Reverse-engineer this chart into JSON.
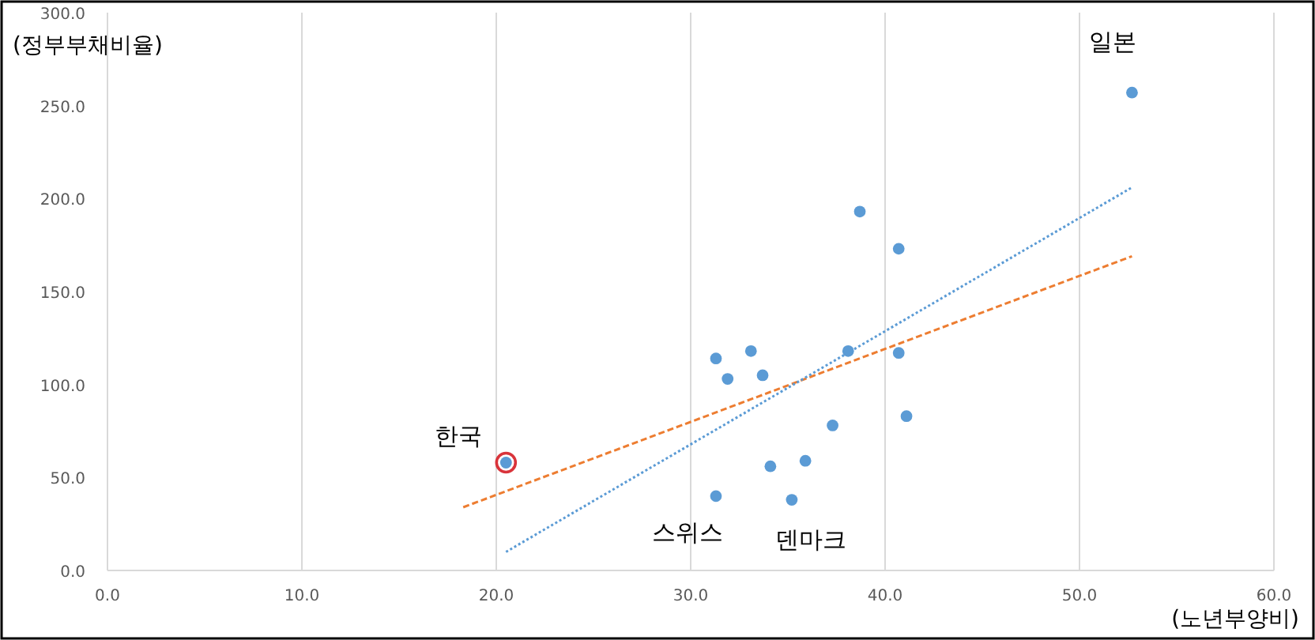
{
  "chart_data": {
    "type": "scatter",
    "xlabel": "(노년부양비)",
    "ylabel": "(정부부채비율)",
    "xlim": [
      0,
      60
    ],
    "ylim": [
      0,
      300
    ],
    "xticks": [
      {
        "value": 0,
        "label": "0.0"
      },
      {
        "value": 10,
        "label": "10.0"
      },
      {
        "value": 20,
        "label": "20.0"
      },
      {
        "value": 30,
        "label": "30.0"
      },
      {
        "value": 40,
        "label": "40.0"
      },
      {
        "value": 50,
        "label": "50.0"
      },
      {
        "value": 60,
        "label": "60.0"
      }
    ],
    "yticks": [
      {
        "value": 0,
        "label": "0.0"
      },
      {
        "value": 50,
        "label": "50.0"
      },
      {
        "value": 100,
        "label": "100.0"
      },
      {
        "value": 150,
        "label": "150.0"
      },
      {
        "value": 200,
        "label": "200.0"
      },
      {
        "value": 250,
        "label": "250.0"
      },
      {
        "value": 300,
        "label": "300.0"
      }
    ],
    "grid": "x",
    "series": [
      {
        "marker": "circle",
        "color": "#5b9bd5",
        "x": [
          20.5,
          52.7,
          38.7,
          40.7,
          31.3,
          33.1,
          31.9,
          33.7,
          38.1,
          40.7,
          41.1,
          37.3,
          34.1,
          35.9,
          31.3,
          35.2
        ],
        "values": [
          58,
          257,
          193,
          173,
          114,
          118,
          103,
          105,
          118,
          117,
          83,
          78,
          56,
          59,
          40,
          38
        ]
      },
      {
        "marker": "circle",
        "color": "#d9343b",
        "x": [
          20.5
        ],
        "values": [
          58
        ]
      },
      {
        "type": "line",
        "color": "#ed7d31",
        "line_style": "dashed",
        "x": [
          18.3,
          52.7
        ],
        "values": [
          34,
          169
        ]
      },
      {
        "type": "line",
        "color": "#5b9bd5",
        "line_style": "dotted",
        "x": [
          20.5,
          52.7
        ],
        "values": [
          10,
          206
        ]
      }
    ],
    "annotations": [
      {
        "text": "한국",
        "x": 20.5,
        "y": 58
      },
      {
        "text": "일본",
        "x": 52.7,
        "y": 257
      },
      {
        "text": "스위스",
        "x": 31.3,
        "y": 40
      },
      {
        "text": "덴마크",
        "x": 35.2,
        "y": 38
      }
    ]
  }
}
